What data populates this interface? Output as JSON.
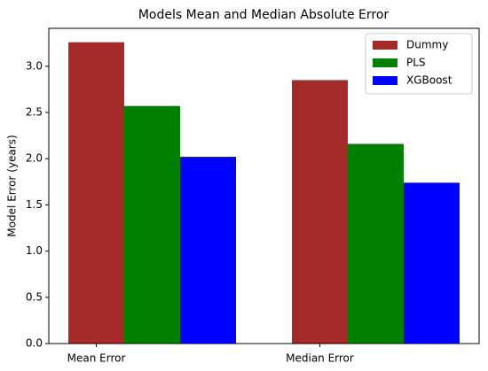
{
  "chart_data": {
    "type": "bar",
    "title": "Models Mean and Median Absolute Error",
    "ylabel": "Model Error (years)",
    "categories": [
      "Mean Error",
      "Median Error"
    ],
    "series": [
      {
        "name": "Dummy",
        "color": "#a52a2a",
        "values": [
          3.26,
          2.85
        ]
      },
      {
        "name": "PLS",
        "color": "#008000",
        "values": [
          2.57,
          2.16
        ]
      },
      {
        "name": "XGBoost",
        "color": "#0000ff",
        "values": [
          2.02,
          1.74
        ]
      }
    ],
    "ylim": [
      0,
      3.41
    ],
    "yticks": [
      0.0,
      0.5,
      1.0,
      1.5,
      2.0,
      2.5,
      3.0
    ],
    "legend": "upper right"
  }
}
